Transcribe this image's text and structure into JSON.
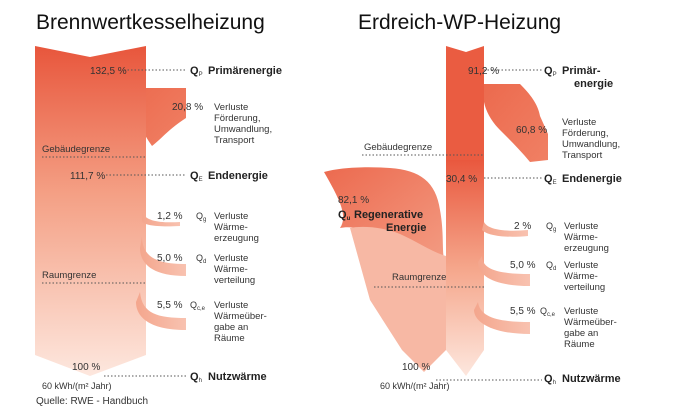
{
  "source": "Quelle: RWE - Handbuch",
  "left": {
    "title": "Brennwertkesselheizung",
    "primary_pct": "132,5 %",
    "primary_label": "Primärenergie",
    "loss_conv_pct": "20,8 %",
    "loss_conv_text": [
      "Verluste",
      "Förderung,",
      "Umwandlung,",
      "Transport"
    ],
    "gebaeude": "Gebäudegrenze",
    "end_pct": "111,7 %",
    "end_label": "Endenergie",
    "loss_gen_pct": "1,2 %",
    "loss_gen_text": [
      "Verluste",
      "Wärme-",
      "erzeugung"
    ],
    "raumgrenze": "Raumgrenze",
    "loss_dist_pct": "5,0 %",
    "loss_dist_text": [
      "Verluste",
      "Wärme-",
      "verteilung"
    ],
    "loss_trans_pct": "5,5 %",
    "loss_trans_text": [
      "Verluste",
      "Wärmeüber-",
      "gabe an",
      "Räume"
    ],
    "useful_pct": "100 %",
    "useful_kwh": "60 kWh/(m² Jahr)",
    "useful_label": "Nutzwärme"
  },
  "right": {
    "title": "Erdreich-WP-Heizung",
    "primary_pct": "91,2 %",
    "primary_label": [
      "Primär-",
      "energie"
    ],
    "loss_conv_pct": "60,8 %",
    "loss_conv_text": [
      "Verluste",
      "Förderung,",
      "Umwandlung,",
      "Transport"
    ],
    "gebaeude": "Gebäudegrenze",
    "end_pct": "30,4 %",
    "end_label": "Endenergie",
    "regen_pct": "82,1 %",
    "regen_label": [
      "Regenerative",
      "Energie"
    ],
    "loss_gen_pct": "2 %",
    "loss_gen_text": [
      "Verluste",
      "Wärme-",
      "erzeugung"
    ],
    "raumgrenze": "Raumgrenze",
    "loss_dist_pct": "5,0 %",
    "loss_dist_text": [
      "Verluste",
      "Wärme-",
      "verteilung"
    ],
    "loss_trans_pct": "5,5 %",
    "loss_trans_text": [
      "Verluste",
      "Wärmeüber-",
      "gabe an",
      "Räume"
    ],
    "useful_pct": "100 %",
    "useful_kwh": "60 kWh/(m² Jahr)",
    "useful_label": "Nutzwärme"
  },
  "colors": {
    "flow_dark": "#e8563c",
    "flow_light": "#fbe3da",
    "dotted": "#555555"
  }
}
